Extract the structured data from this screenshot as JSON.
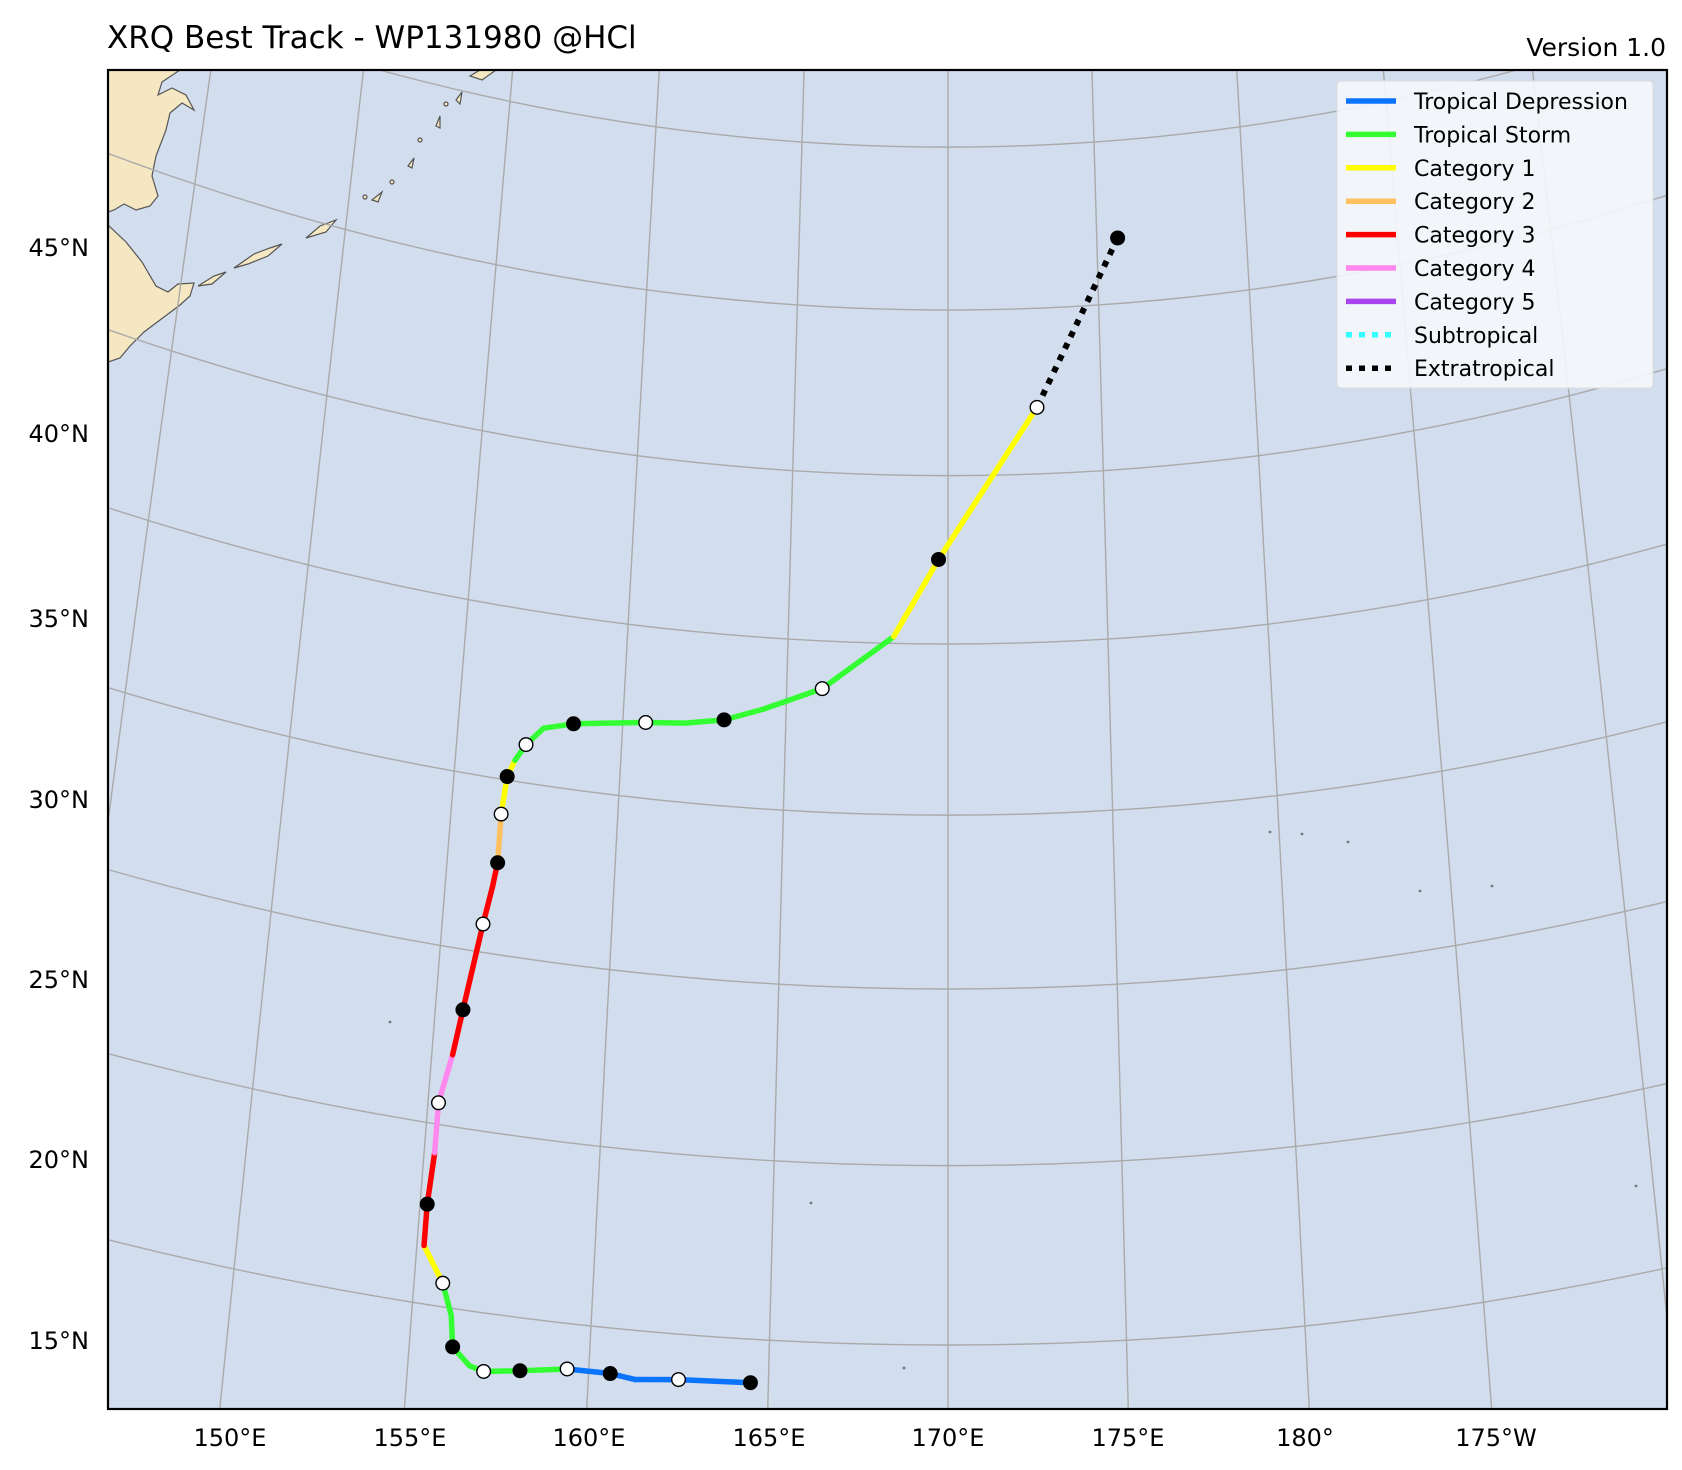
{
  "header": {
    "title": "XRQ Best Track - WP131980  @HCl",
    "version": "Version 1.0"
  },
  "colors": {
    "ocean": "#d2ddee",
    "land": "#f4e7c1",
    "grid": "#aaaaaa",
    "frame": "#000000"
  },
  "axes": {
    "lon_labels": [
      "150°E",
      "155°E",
      "160°E",
      "165°E",
      "170°E",
      "175°E",
      "180°",
      "175°W"
    ],
    "lat_labels": [
      "15°N",
      "20°N",
      "25°N",
      "30°N",
      "35°N",
      "40°N",
      "45°N"
    ]
  },
  "legend": {
    "position": "top-right",
    "items": [
      {
        "label": "Tropical Depression",
        "color": "#0a74ff",
        "style": "solid"
      },
      {
        "label": "Tropical Storm",
        "color": "#33ff33",
        "style": "solid"
      },
      {
        "label": "Category 1",
        "color": "#ffff00",
        "style": "solid"
      },
      {
        "label": "Category 2",
        "color": "#ffc060",
        "style": "solid"
      },
      {
        "label": "Category 3",
        "color": "#ff0000",
        "style": "solid"
      },
      {
        "label": "Category 4",
        "color": "#ff88ee",
        "style": "solid"
      },
      {
        "label": "Category 5",
        "color": "#aa44ee",
        "style": "solid"
      },
      {
        "label": "Subtropical",
        "color": "#33ffff",
        "style": "dotted"
      },
      {
        "label": "Extratropical",
        "color": "#000000",
        "style": "dotted"
      }
    ]
  },
  "chart_data": {
    "type": "line",
    "title": "XRQ Best Track - WP131980  @HCl",
    "projection": "conic",
    "lon_range": [
      146.5,
      190.0
    ],
    "lat_range": [
      13.0,
      49.5
    ],
    "grid": true,
    "legend_position": "top-right",
    "track": [
      {
        "lon": 164.5,
        "lat": 13.8,
        "cat": "Tropical Depression",
        "marker": "black"
      },
      {
        "lon": 162.5,
        "lat": 13.75,
        "cat": "Tropical Depression",
        "marker": "white"
      },
      {
        "lon": 161.3,
        "lat": 13.65,
        "cat": "Tropical Depression",
        "marker": "none"
      },
      {
        "lon": 160.6,
        "lat": 13.75,
        "cat": "Tropical Depression",
        "marker": "black"
      },
      {
        "lon": 159.4,
        "lat": 13.75,
        "cat": "Tropical Storm",
        "marker": "white"
      },
      {
        "lon": 158.1,
        "lat": 13.55,
        "cat": "Tropical Storm",
        "marker": "black"
      },
      {
        "lon": 157.1,
        "lat": 13.4,
        "cat": "Tropical Storm",
        "marker": "white"
      },
      {
        "lon": 156.7,
        "lat": 13.5,
        "cat": "Tropical Storm",
        "marker": "none"
      },
      {
        "lon": 156.2,
        "lat": 13.95,
        "cat": "Tropical Storm",
        "marker": "black"
      },
      {
        "lon": 156.1,
        "lat": 14.8,
        "cat": "Tropical Storm",
        "marker": "none"
      },
      {
        "lon": 155.8,
        "lat": 15.65,
        "cat": "Category 1",
        "marker": "white"
      },
      {
        "lon": 155.2,
        "lat": 16.6,
        "cat": "Category 3",
        "marker": "none"
      },
      {
        "lon": 155.2,
        "lat": 17.75,
        "cat": "Category 3",
        "marker": "black"
      },
      {
        "lon": 155.3,
        "lat": 19.2,
        "cat": "Category 4",
        "marker": "none"
      },
      {
        "lon": 155.3,
        "lat": 20.6,
        "cat": "Category 4",
        "marker": "white"
      },
      {
        "lon": 155.6,
        "lat": 22.0,
        "cat": "Category 3",
        "marker": "none"
      },
      {
        "lon": 155.8,
        "lat": 23.3,
        "cat": "Category 3",
        "marker": "black"
      },
      {
        "lon": 156.2,
        "lat": 25.8,
        "cat": "Category 3",
        "marker": "white"
      },
      {
        "lon": 156.4,
        "lat": 26.9,
        "cat": "Category 3",
        "marker": "none"
      },
      {
        "lon": 156.5,
        "lat": 27.6,
        "cat": "Category 2",
        "marker": "black"
      },
      {
        "lon": 156.5,
        "lat": 28.3,
        "cat": "Category 2",
        "marker": "none"
      },
      {
        "lon": 156.5,
        "lat": 29.0,
        "cat": "Category 1",
        "marker": "white"
      },
      {
        "lon": 156.6,
        "lat": 30.1,
        "cat": "Category 1",
        "marker": "black"
      },
      {
        "lon": 156.8,
        "lat": 30.6,
        "cat": "Tropical Storm",
        "marker": "none"
      },
      {
        "lon": 157.1,
        "lat": 31.1,
        "cat": "Tropical Storm",
        "marker": "white"
      },
      {
        "lon": 157.6,
        "lat": 31.65,
        "cat": "Tropical Storm",
        "marker": "none"
      },
      {
        "lon": 158.5,
        "lat": 31.9,
        "cat": "Tropical Storm",
        "marker": "black"
      },
      {
        "lon": 160.7,
        "lat": 32.2,
        "cat": "Tropical Storm",
        "marker": "white"
      },
      {
        "lon": 161.9,
        "lat": 32.3,
        "cat": "Tropical Storm",
        "marker": "none"
      },
      {
        "lon": 163.1,
        "lat": 32.5,
        "cat": "Tropical Storm",
        "marker": "black"
      },
      {
        "lon": 164.3,
        "lat": 32.9,
        "cat": "Tropical Storm",
        "marker": "none"
      },
      {
        "lon": 166.1,
        "lat": 33.6,
        "cat": "Tropical Storm",
        "marker": "white"
      },
      {
        "lon": 168.3,
        "lat": 35.2,
        "cat": "Category 1",
        "marker": "none"
      },
      {
        "lon": 169.7,
        "lat": 37.5,
        "cat": "Category 1",
        "marker": "black"
      },
      {
        "lon": 172.9,
        "lat": 42.0,
        "cat": "Extratropical",
        "marker": "white"
      },
      {
        "lon": 175.7,
        "lat": 47.0,
        "cat": "Extratropical",
        "marker": "black"
      }
    ]
  }
}
